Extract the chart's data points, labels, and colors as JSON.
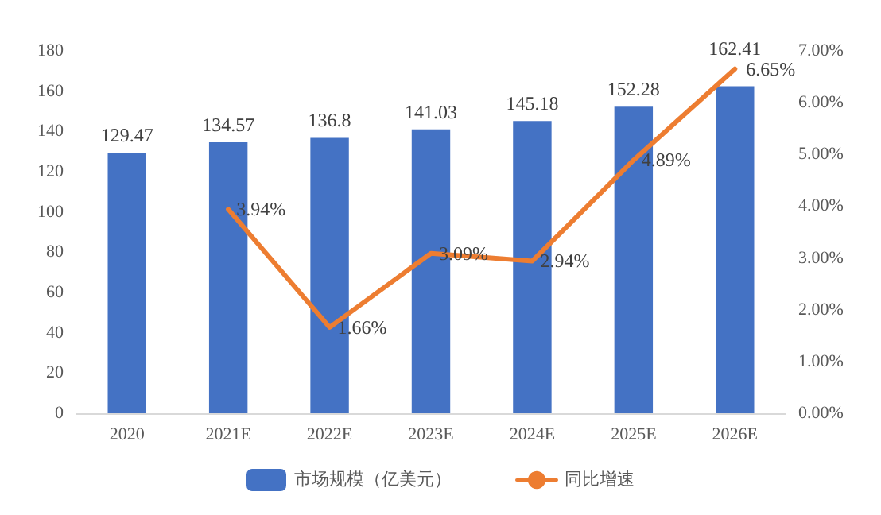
{
  "chart_data": {
    "type": "bar",
    "categories": [
      "2020",
      "2021E",
      "2022E",
      "2023E",
      "2024E",
      "2025E",
      "2026E"
    ],
    "series": [
      {
        "name": "市场规模（亿美元）",
        "color": "#4472c4",
        "values": [
          129.47,
          134.57,
          136.8,
          141.03,
          145.18,
          152.28,
          162.41
        ],
        "value_labels": [
          "129.47",
          "134.57",
          "136.8",
          "141.03",
          "145.18",
          "152.28",
          "162.41"
        ]
      },
      {
        "name": "同比增速",
        "type": "line",
        "axis": "y2",
        "color": "#ed7d31",
        "values": [
          null,
          3.94,
          1.66,
          3.09,
          2.94,
          4.89,
          6.65
        ],
        "value_labels": [
          null,
          "3.94%",
          "1.66%",
          "3.09%",
          "2.94%",
          "4.89%",
          "6.65%"
        ]
      }
    ],
    "ylim": [
      0,
      180
    ],
    "yticks": [
      0,
      20,
      40,
      60,
      80,
      100,
      120,
      140,
      160,
      180
    ],
    "y2lim": [
      0,
      7
    ],
    "y2ticks": [
      {
        "value": 0,
        "label": "0.00%"
      },
      {
        "value": 1,
        "label": "1.00%"
      },
      {
        "value": 2,
        "label": "2.00%"
      },
      {
        "value": 3,
        "label": "3.00%"
      },
      {
        "value": 4,
        "label": "4.00%"
      },
      {
        "value": 5,
        "label": "5.00%"
      },
      {
        "value": 6,
        "label": "6.00%"
      },
      {
        "value": 7,
        "label": "7.00%"
      }
    ],
    "legend": "bottom",
    "marker": "none",
    "line_style": "solid"
  }
}
